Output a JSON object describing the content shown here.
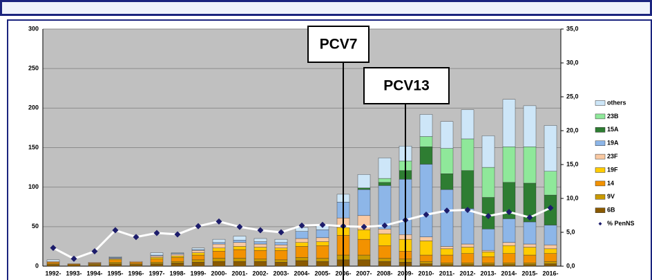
{
  "chart_data": {
    "type": "bar",
    "stacked": true,
    "categories": [
      "1992-",
      "1993-",
      "1994-",
      "1995-",
      "1996-",
      "1997-",
      "1998-",
      "1999-",
      "2000-",
      "2001-",
      "2002-",
      "2003-",
      "2004-",
      "2005-",
      "2006-",
      "2007-",
      "2008-",
      "2009-",
      "2010-",
      "2011-",
      "2012-",
      "2013-",
      "2014-",
      "2015-",
      "2016-"
    ],
    "series": [
      {
        "name": "6B",
        "color": "#8a5a00",
        "values": [
          2,
          2,
          2,
          3,
          2,
          3,
          4,
          5,
          6,
          6,
          6,
          5,
          7,
          6,
          8,
          8,
          6,
          5,
          3,
          2,
          2,
          2,
          2,
          2,
          3
        ]
      },
      {
        "name": "9V",
        "color": "#c99a00",
        "values": [
          1,
          0,
          1,
          2,
          1,
          2,
          2,
          3,
          4,
          4,
          3,
          3,
          4,
          4,
          6,
          6,
          4,
          4,
          3,
          2,
          2,
          2,
          2,
          2,
          3
        ]
      },
      {
        "name": "14",
        "color": "#f39200",
        "values": [
          2,
          1,
          1,
          3,
          2,
          4,
          5,
          6,
          9,
          11,
          11,
          12,
          14,
          16,
          25,
          20,
          16,
          10,
          8,
          10,
          12,
          8,
          12,
          10,
          10
        ]
      },
      {
        "name": "19F",
        "color": "#ffcc00",
        "values": [
          0,
          0,
          0,
          1,
          0,
          2,
          2,
          3,
          4,
          4,
          4,
          3,
          5,
          5,
          10,
          12,
          15,
          15,
          18,
          8,
          8,
          6,
          10,
          10,
          6
        ]
      },
      {
        "name": "23F",
        "color": "#f9c9a2",
        "values": [
          1,
          0,
          1,
          1,
          1,
          2,
          2,
          3,
          5,
          5,
          4,
          4,
          5,
          5,
          12,
          18,
          6,
          6,
          5,
          3,
          4,
          2,
          4,
          4,
          5
        ]
      },
      {
        "name": "19A",
        "color": "#8db6e8",
        "values": [
          0,
          0,
          0,
          1,
          0,
          1,
          1,
          1,
          2,
          3,
          3,
          3,
          9,
          10,
          20,
          33,
          55,
          70,
          92,
          72,
          45,
          27,
          30,
          28,
          25
        ]
      },
      {
        "name": "15A",
        "color": "#2e7d32",
        "values": [
          0,
          0,
          0,
          0,
          0,
          0,
          0,
          0,
          0,
          0,
          0,
          0,
          0,
          0,
          0,
          2,
          4,
          11,
          22,
          20,
          48,
          40,
          46,
          49,
          38
        ]
      },
      {
        "name": "23B",
        "color": "#8fe89a",
        "values": [
          0,
          0,
          0,
          0,
          0,
          0,
          0,
          0,
          0,
          0,
          0,
          0,
          0,
          0,
          0,
          0,
          5,
          12,
          13,
          32,
          40,
          38,
          45,
          46,
          30
        ]
      },
      {
        "name": "others",
        "color": "#cde6f8",
        "values": [
          2,
          0,
          0,
          1,
          0,
          3,
          1,
          2,
          4,
          5,
          4,
          4,
          5,
          5,
          10,
          17,
          26,
          19,
          28,
          34,
          37,
          40,
          60,
          52,
          58
        ]
      },
      {
        "name": "% PenNS",
        "type": "line",
        "axis": "y2",
        "color": "#1c1c6b",
        "line_color": "#ffffff",
        "values": [
          2.7,
          1.1,
          2.2,
          5.3,
          4.3,
          4.9,
          4.7,
          5.9,
          6.6,
          5.8,
          5.3,
          5.0,
          6.0,
          6.1,
          5.9,
          5.8,
          6.0,
          6.8,
          7.6,
          8.2,
          8.3,
          7.4,
          8.0,
          7.2,
          8.6
        ]
      }
    ],
    "ylim": [
      0,
      300
    ],
    "yticks": [
      0,
      50,
      100,
      150,
      200,
      250,
      300
    ],
    "y2lim": [
      0,
      35
    ],
    "y2ticks": [
      {
        "value": 0,
        "label": "0,0"
      },
      {
        "value": 5,
        "label": "5,0"
      },
      {
        "value": 10,
        "label": "10,0"
      },
      {
        "value": 15,
        "label": "15,0"
      },
      {
        "value": 20,
        "label": "20,0"
      },
      {
        "value": 25,
        "label": "25,0"
      },
      {
        "value": 30,
        "label": "30,0"
      },
      {
        "value": 35,
        "label": "35,0"
      }
    ],
    "grid": true,
    "legend": "right",
    "annotations": [
      {
        "text": "PCV7",
        "category": "2006-"
      },
      {
        "text": "PCV13",
        "category": "2009-"
      }
    ]
  }
}
